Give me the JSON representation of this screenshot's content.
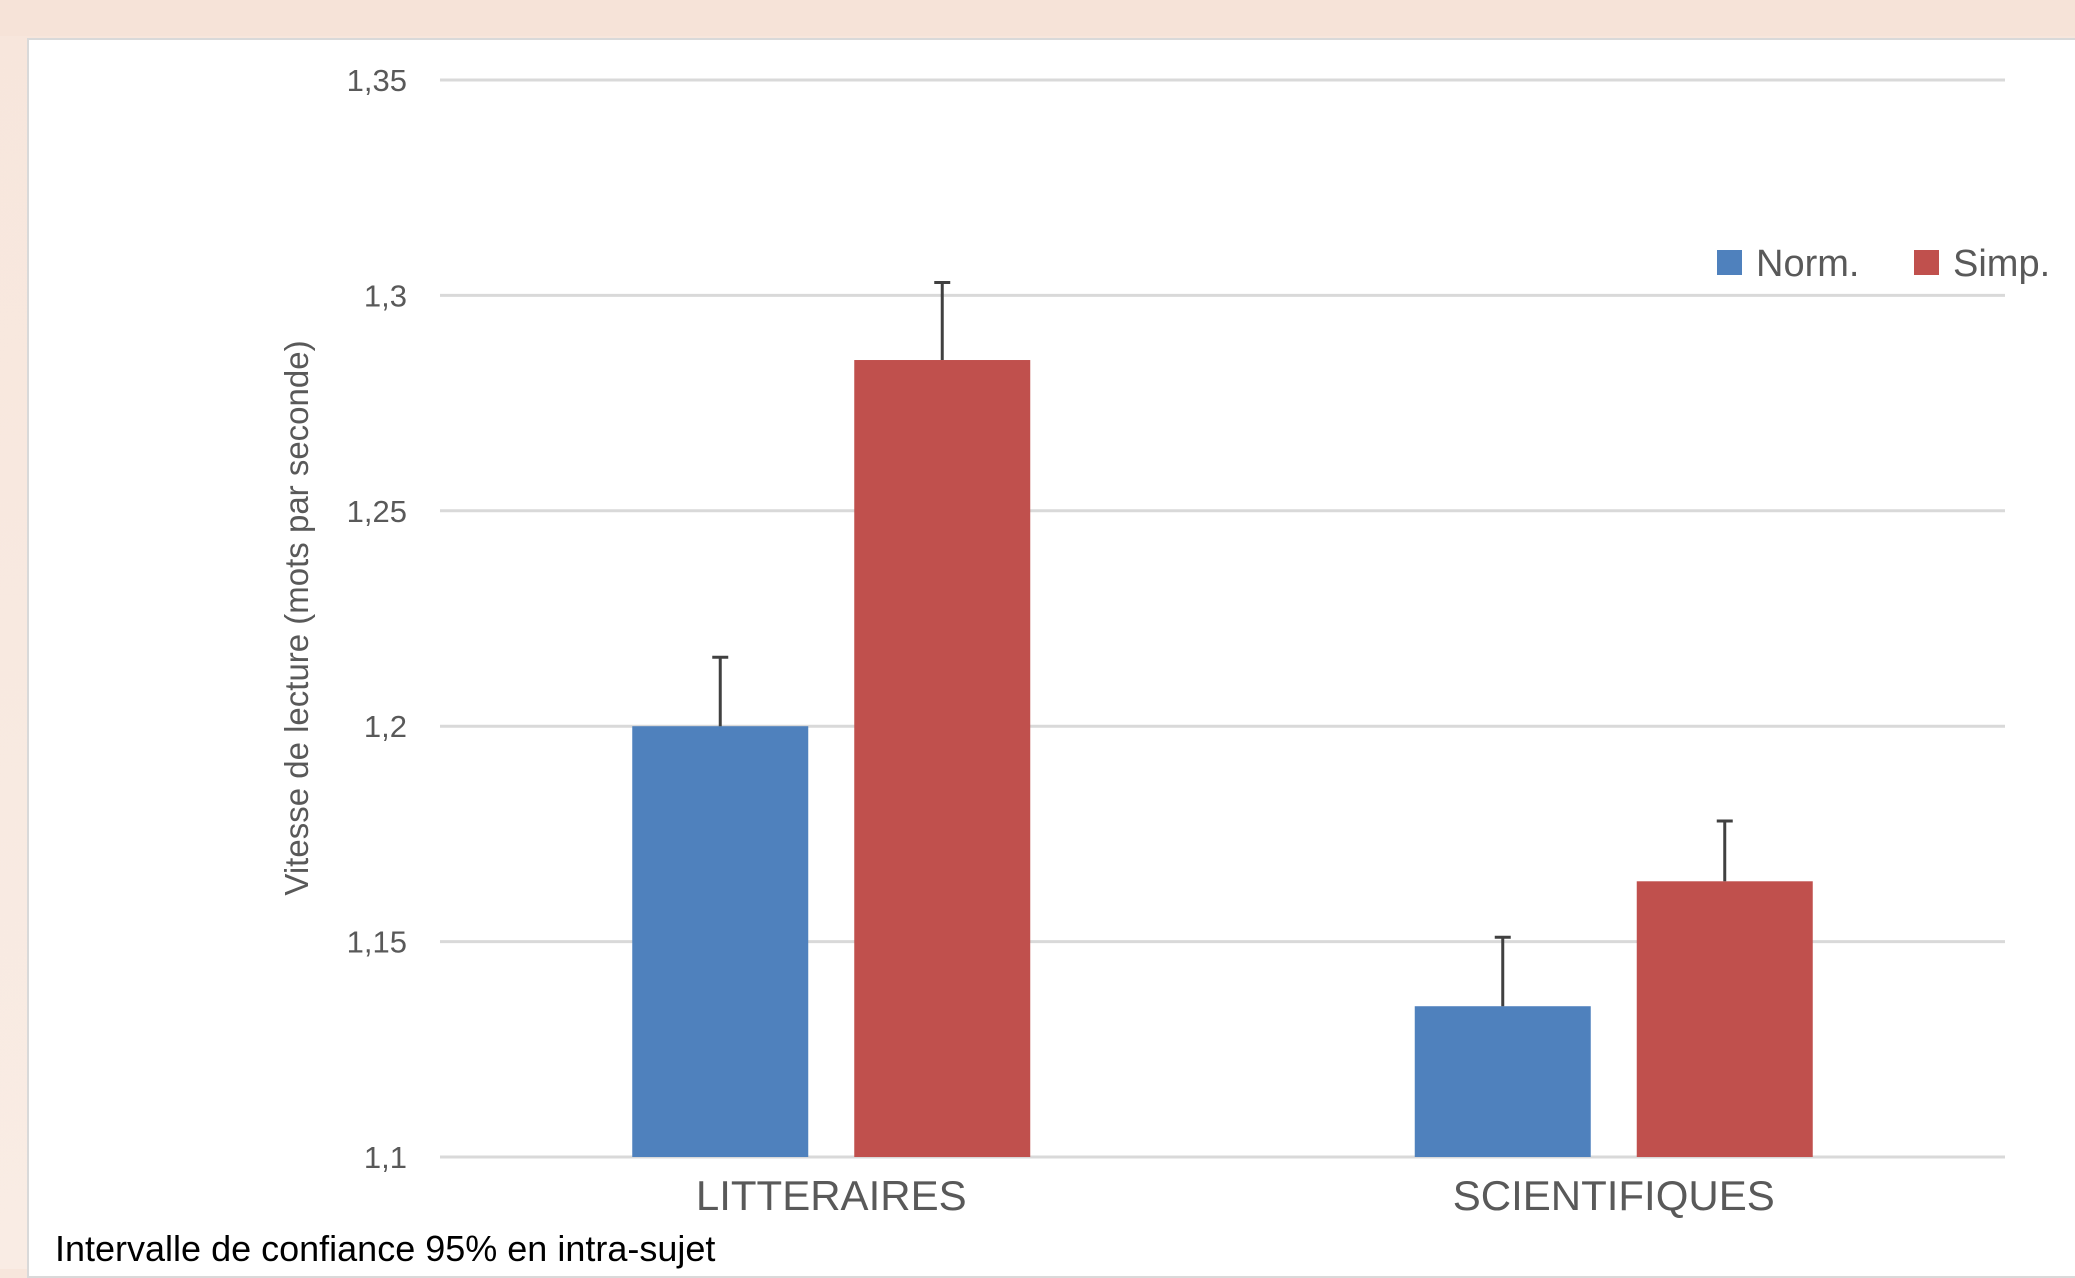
{
  "chart_data": {
    "type": "bar",
    "title": "",
    "xlabel": "",
    "ylabel": "Vitesse de lecture (mots par seconde)",
    "ylim": [
      1.1,
      1.35
    ],
    "yticks": [
      "1,1",
      "1,15",
      "1,2",
      "1,25",
      "1,3",
      "1,35"
    ],
    "grid": true,
    "legend_position": "top-right",
    "categories": [
      "LITTERAIRES",
      "SCIENTIFIQUES"
    ],
    "series": [
      {
        "name": "Norm.",
        "color": "#4f81bd",
        "values": [
          1.2,
          1.135
        ],
        "error_plus": [
          0.016,
          0.016
        ]
      },
      {
        "name": "Simp.",
        "color": "#c0504d",
        "values": [
          1.285,
          1.164
        ],
        "error_plus": [
          0.018,
          0.014
        ]
      }
    ]
  },
  "footnote": "Intervalle de confiance 95% en intra-sujet"
}
